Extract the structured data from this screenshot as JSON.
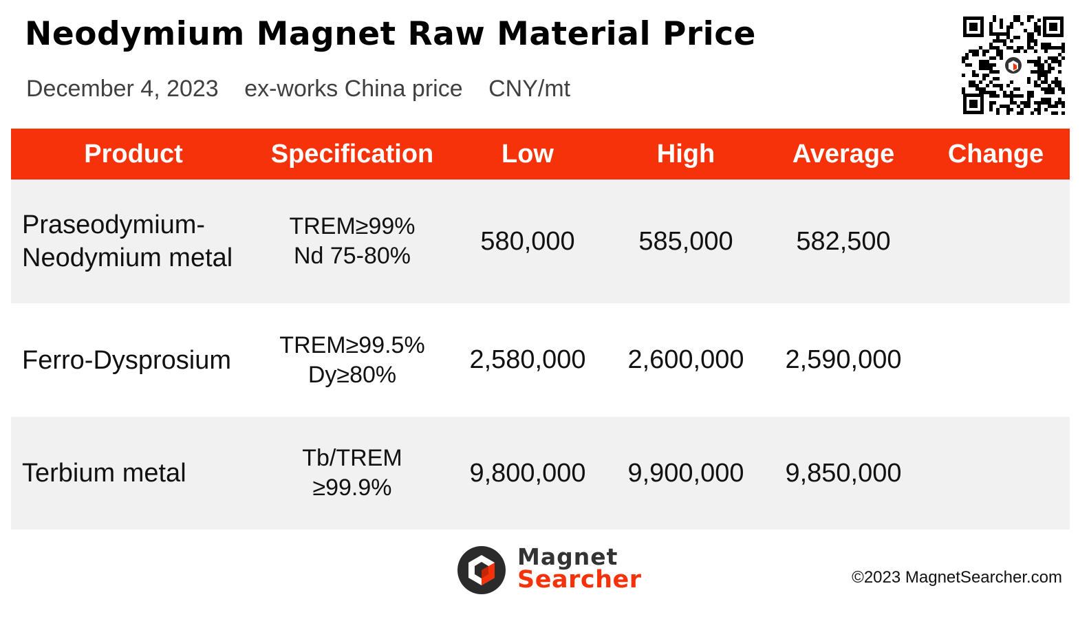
{
  "header": {
    "title": "Neodymium Magnet Raw Material Price",
    "date": "December 4, 2023",
    "basis": "ex-works China price",
    "unit": "CNY/mt"
  },
  "table": {
    "columns": [
      "Product",
      "Specification",
      "Low",
      "High",
      "Average",
      "Change"
    ],
    "rows": [
      {
        "product_line1": "Praseodymium-",
        "product_line2": "Neodymium metal",
        "spec_line1": "TREM≥99%",
        "spec_line2": "Nd 75-80%",
        "low": "580,000",
        "high": "585,000",
        "average": "582,500",
        "change": ""
      },
      {
        "product_line1": "Ferro-Dysprosium",
        "product_line2": "",
        "spec_line1": "TREM≥99.5%",
        "spec_line2": "Dy≥80%",
        "low": "2,580,000",
        "high": "2,600,000",
        "average": "2,590,000",
        "change": ""
      },
      {
        "product_line1": "Terbium metal",
        "product_line2": "",
        "spec_line1": "Tb/TREM",
        "spec_line2": "≥99.9%",
        "low": "9,800,000",
        "high": "9,900,000",
        "average": "9,850,000",
        "change": ""
      }
    ]
  },
  "footer": {
    "logo_line1": "Magnet",
    "logo_line2": "Searcher",
    "copyright": "©2023 MagnetSearcher.com"
  },
  "colors": {
    "accent": "#f5320a",
    "row_shade": "#f1f1f1",
    "subtitle_gray": "#404040"
  }
}
